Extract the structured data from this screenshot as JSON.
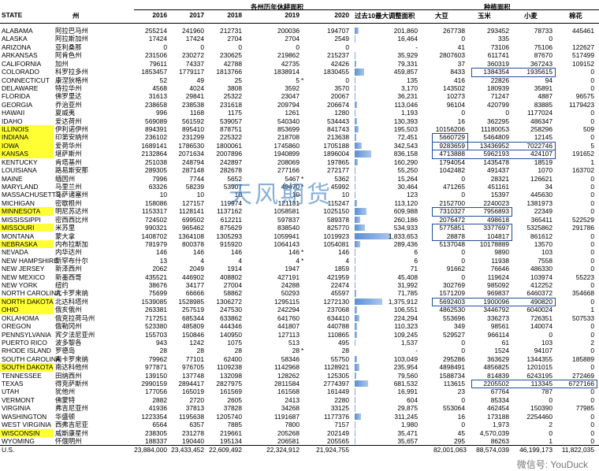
{
  "headers": {
    "state": "STATE",
    "zhou": "州",
    "y2016": "2016",
    "y2017": "2017",
    "y2018": "2018",
    "y2019": "2019",
    "y2020": "2020",
    "group_fallow": "各州历年休耕面积",
    "group_crop": "种植面积",
    "max_adjust": "过去10最大调整面积",
    "soy": "大豆",
    "corn": "玉米",
    "wheat": "小麦",
    "cotton": "棉花"
  },
  "rows": [
    [
      "ALABAMA",
      "阿拉巴马州",
      "255214",
      "241960",
      "212731",
      "200036",
      "194707",
      "201,860",
      "267738",
      "293452",
      "78733",
      "445461"
    ],
    [
      "ALASKA",
      "阿拉斯加州",
      "17424",
      "17424",
      "2704",
      "2704",
      "2549",
      "16,464",
      "0",
      "335",
      "0",
      ""
    ],
    [
      "ARIZONA",
      "亚利桑那",
      "0",
      "0",
      "0",
      "0",
      "0",
      "-",
      "41",
      "73106",
      "75106",
      "122627"
    ],
    [
      "ARKANSAS",
      "阿肯色州",
      "231506",
      "230272",
      "230625",
      "219862",
      "215237",
      "35,929",
      "2807603",
      "611741",
      "87670",
      "517499"
    ],
    [
      "CALIFORNIA",
      "加州",
      "79611",
      "74337",
      "42788",
      "42735",
      "42426",
      "79,331",
      "37",
      "360319",
      "367243",
      "109152"
    ],
    [
      "COLORADO",
      "科罗拉多州",
      "1853457",
      "1779117",
      "1813766",
      "1838914",
      "1830455",
      "459,857",
      "8433",
      "1384354",
      "1935615",
      "0"
    ],
    [
      "CONNECTICUT",
      "康涅狄格州",
      "52",
      "49",
      "25",
      "5",
      "0",
      "135",
      "416",
      "22826",
      "94",
      "0"
    ],
    [
      "DELAWARE",
      "特拉华州",
      "4568",
      "4024",
      "3808",
      "3592",
      "3570",
      "3,170",
      "143502",
      "180939",
      "35891",
      "0"
    ],
    [
      "FLORIDA",
      "佛罗里达",
      "31613",
      "29841",
      "25322",
      "23047",
      "20067",
      "36,231",
      "10273",
      "71247",
      "4887",
      "96575"
    ],
    [
      "GEORGIA",
      "乔治亚州",
      "238658",
      "238538",
      "231618",
      "209794",
      "206674",
      "113,046",
      "96104",
      "420799",
      "83885",
      "1179423"
    ],
    [
      "HAWAII",
      "夏威夷",
      "996",
      "1168",
      "1175",
      "1261",
      "1280",
      "1,193",
      "0",
      "0",
      "1177024",
      "0"
    ],
    [
      "IDAHO",
      "爱达荷州",
      "569089",
      "561592",
      "539057",
      "540340",
      "534443",
      "130,393",
      "16",
      "362295",
      "486347",
      "0"
    ],
    [
      "ILLINOIS",
      "伊利诺伊州",
      "894391",
      "895410",
      "878751",
      "853699",
      "841743",
      "195,503",
      "10156206",
      "11180053",
      "258296",
      "509"
    ],
    [
      "INDIANA",
      "印第安纳州",
      "236102",
      "231299",
      "225322",
      "218708",
      "213638",
      "72,451",
      "5660729",
      "5464809",
      "12145",
      "0"
    ],
    [
      "IOWA",
      "爱荷华州",
      "1689141",
      "1786530",
      "1800061",
      "1745860",
      "1705188",
      "342,543",
      "9283659",
      "13436952",
      "7022746",
      "5"
    ],
    [
      "KANSAS",
      "堪萨斯州",
      "2132864",
      "2071634",
      "2007896",
      "1940899",
      "1896004",
      "836,158",
      "4713888",
      "5962193",
      "424107",
      "191652"
    ],
    [
      "KENTUCKY",
      "肯塔基州",
      "251038",
      "248794",
      "242897",
      "208069",
      "197865",
      "160,290",
      "1794054",
      "1435478",
      "18519",
      "1"
    ],
    [
      "LOUISIANA",
      "路易斯安那",
      "289305",
      "287148",
      "282678",
      "277166",
      "272177",
      "55,250",
      "1042482",
      "491437",
      "1070",
      "163702"
    ],
    [
      "MAINE",
      "缅因州",
      "7996",
      "7744",
      "5652",
      "5467",
      "5362",
      "15,264",
      "0",
      "28321",
      "126621",
      "0"
    ],
    [
      "MARYLAND",
      "马里兰州",
      "63326",
      "58239",
      "53907",
      "49470",
      "45992",
      "30,464",
      "471265",
      "451161",
      "34",
      "0"
    ],
    [
      "MASSACHUSETTS",
      "马萨诸塞州",
      "10",
      "10",
      "10",
      "10",
      "10",
      "123",
      "0",
      "15397",
      "445630",
      "0"
    ],
    [
      "MICHIGAN",
      "密歇根州",
      "158086",
      "127157",
      "119974",
      "121131",
      "115247",
      "113,120",
      "2152700",
      "2240023",
      "1381973",
      "0"
    ],
    [
      "MINNESOTA",
      "明尼苏达州",
      "1153317",
      "1128141",
      "1137162",
      "1058581",
      "1025150",
      "609,988",
      "7310327",
      "7956893",
      "22349",
      "0"
    ],
    [
      "MISSISSIPPI",
      "密西西比州",
      "724502",
      "699502",
      "612211",
      "597837",
      "589378",
      "260,186",
      "2076472",
      "498618",
      "365411",
      "522529"
    ],
    [
      "MISSOURI",
      "米苏里",
      "990321",
      "965462",
      "875629",
      "838540",
      "825770",
      "534,933",
      "5775851",
      "3377697",
      "5325862",
      "291786"
    ],
    [
      "MONTANA",
      "蒙大拿",
      "1408702",
      "1364108",
      "1305293",
      "1059941",
      "1019923",
      "1,833,653",
      "28878",
      "104817",
      "861612",
      "0"
    ],
    [
      "NEBRASKA",
      "内布拉斯加",
      "781979",
      "800378",
      "915920",
      "1064143",
      "1054081",
      "289,436",
      "5137048",
      "10178889",
      "13570",
      "0"
    ],
    [
      "NEVADA",
      "内华达州",
      "146",
      "146",
      "146",
      "146",
      "146",
      "6",
      "0",
      "9890",
      "103",
      "0"
    ],
    [
      "NEW HAMPSHIRE",
      "新罕布什尔",
      "13",
      "4",
      "4",
      "4",
      "4",
      "6",
      "0",
      "11938",
      "7558",
      "0"
    ],
    [
      "NEW JERSEY",
      "新泽西州",
      "2062",
      "2049",
      "1914",
      "1947",
      "1859",
      "71",
      "91662",
      "76646",
      "486330",
      "0"
    ],
    [
      "NEW MEXICO",
      "新墨西哥",
      "435521",
      "446902",
      "408802",
      "427191",
      "421959",
      "45,408",
      "0",
      "119624",
      "103974",
      "55223"
    ],
    [
      "NEW YORK",
      "纽约",
      "38676",
      "34177",
      "27004",
      "24288",
      "22474",
      "31,992",
      "302769",
      "985092",
      "412252",
      "0"
    ],
    [
      "NORTH CAROLINA",
      "北卡罗来纳",
      "75699",
      "66666",
      "58862",
      "50293",
      "45597",
      "71,785",
      "1571209",
      "969837",
      "6460372",
      "354668"
    ],
    [
      "NORTH DAKOTA",
      "北达科塔州",
      "1539085",
      "1528985",
      "1306272",
      "1295115",
      "1272130",
      "1,375,912",
      "5692403",
      "1900096",
      "490820",
      "0"
    ],
    [
      "OHIO",
      "俄亥俄州",
      "263381",
      "257519",
      "247530",
      "242294",
      "237068",
      "106,551",
      "4862530",
      "3446792",
      "6040024",
      "1"
    ],
    [
      "OKLAHOMA",
      "俄克拉荷马州",
      "717251",
      "685344",
      "633862",
      "641760",
      "634410",
      "224,294",
      "553696",
      "336273",
      "726351",
      "507533"
    ],
    [
      "OREGON",
      "俄勒冈州",
      "523380",
      "485809",
      "444346",
      "441807",
      "440788",
      "110,323",
      "349",
      "98561",
      "140074",
      "0"
    ],
    [
      "PENNSYLVANIA",
      "宾夕法尼亚州",
      "155703",
      "150846",
      "140950",
      "127113",
      "110865",
      "109,245",
      "529527",
      "966114",
      "0",
      "0"
    ],
    [
      "PUERTO RICO",
      "波多黎各",
      "943",
      "1242",
      "1075",
      "513",
      "495",
      "1,537",
      "0",
      "61",
      "103",
      "2"
    ],
    [
      "RHODE ISLAND",
      "罗德岛",
      "28",
      "28",
      "28",
      "28",
      "28",
      "-",
      "0",
      "1524",
      "94107",
      "0"
    ],
    [
      "SOUTH CAROLINA",
      "南卡罗来纳",
      "79962",
      "77101",
      "62400",
      "58346",
      "55750",
      "103,049",
      "295286",
      "363629",
      "1344355",
      "185889"
    ],
    [
      "SOUTH DAKOTA",
      "南达科他州",
      "977871",
      "976705",
      "1109238",
      "1142968",
      "1128921",
      "235,954",
      "4898491",
      "4856825",
      "1201015",
      "0"
    ],
    [
      "TENNESSEE",
      "田纳西州",
      "139150",
      "137748",
      "132098",
      "128262",
      "125305",
      "79,560",
      "1588734",
      "814839",
      "6243195",
      "272469"
    ],
    [
      "TEXAS",
      "得克萨斯州",
      "2990159",
      "2894417",
      "2827975",
      "2811584",
      "2774397",
      "681,532",
      "113615",
      "2205502",
      "113345",
      "6727166"
    ],
    [
      "UTAH",
      "犹他州",
      "177056",
      "165019",
      "161569",
      "161568",
      "161449",
      "16,991",
      "23",
      "67764",
      "787",
      "0"
    ],
    [
      "VERMONT",
      "佛蒙特",
      "2882",
      "2720",
      "2605",
      "2413",
      "2280",
      "604",
      "0",
      "85334",
      "0",
      "0"
    ],
    [
      "VIRGINIA",
      "弗吉尼亚州",
      "41936",
      "37813",
      "37828",
      "34268",
      "33125",
      "29,875",
      "553064",
      "462454",
      "150390",
      "77985"
    ],
    [
      "WASHINGTON",
      "华盛顿",
      "1223354",
      "1195638",
      "1205740",
      "1191687",
      "1177376",
      "311,245",
      "16",
      "173188",
      "2254460",
      "0"
    ],
    [
      "WEST VIRGINIA",
      "西弗吉尼亚",
      "6564",
      "6357",
      "7885",
      "7800",
      "7157",
      "1,980",
      "0",
      "1,973",
      "2",
      "0"
    ],
    [
      "WISCONSIN",
      "威斯康星州",
      "238305",
      "231278",
      "219661",
      "205268",
      "202149",
      "35,471",
      "45",
      "4,570,039",
      "0",
      "0"
    ],
    [
      "WYOMING",
      "怀俄明州",
      "188337",
      "190440",
      "195134",
      "206581",
      "205565",
      "35,657",
      "295",
      "86263",
      "1",
      "0"
    ]
  ],
  "total": [
    "U.S.",
    "",
    "23,884,000",
    "23,433,452",
    "22,609,492",
    "22,324,912",
    "21,924,755",
    "",
    "82,001,063",
    "88,574,039",
    "46,199,173",
    "11,822,035"
  ],
  "bar_values": [
    201860,
    16464,
    0,
    35929,
    79331,
    459857,
    135,
    3170,
    36231,
    113046,
    1193,
    130393,
    195503,
    72451,
    342543,
    836158,
    160290,
    55250,
    15264,
    30464,
    123,
    113120,
    609988,
    260186,
    534933,
    1833653,
    289436,
    6,
    6,
    71,
    45408,
    31992,
    71785,
    1375912,
    106551,
    224294,
    110323,
    109245,
    1537,
    0,
    103049,
    235954,
    79560,
    681532,
    16991,
    604,
    29875,
    311245,
    1980,
    35471,
    35657
  ],
  "bar_max": 1833653,
  "highlight_states": [
    "ILLINOIS",
    "INDIANA",
    "IOWA",
    "KANSAS",
    "MINNESOTA",
    "MISSOURI",
    "NEBRASKA",
    "NORTH DAKOTA",
    "OHIO",
    "SOUTH DAKOTA",
    "WISCONSIN"
  ],
  "asterisks": [
    "CONNECTICUT",
    "NEVADA",
    "NEW HAMPSHIRE",
    "RHODE ISLAND",
    "MAINE",
    "MARYLAND"
  ],
  "watermark": "天风期货",
  "watermark2": "微信号: YouDuck",
  "colors": {
    "highlight": "#ffff33",
    "box": "#1f4e9c",
    "bar": "#5b8fd6"
  }
}
